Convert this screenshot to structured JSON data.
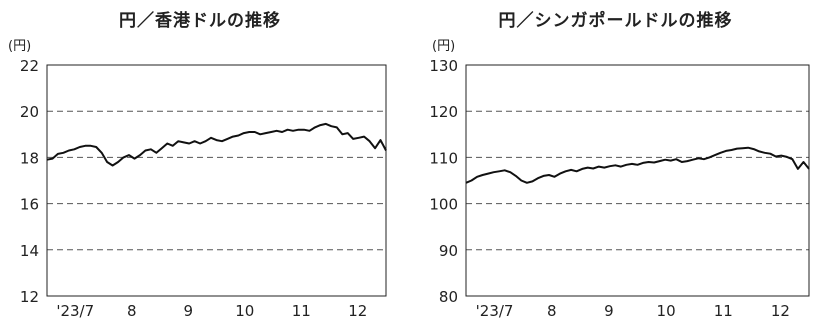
{
  "chart_data": [
    {
      "type": "line",
      "title": "円／香港ドルの推移",
      "ylabel": "(円)",
      "xlabel": "",
      "ylim": [
        12,
        22
      ],
      "yticks": [
        "22",
        "20",
        "18",
        "16",
        "14",
        "12"
      ],
      "xticks": [
        "'23/7",
        "8",
        "9",
        "10",
        "11",
        "12"
      ],
      "grid": "dashed horizontal",
      "series": [
        {
          "values": [
            17.9,
            17.95,
            18.15,
            18.2,
            18.3,
            18.35,
            18.45,
            18.5,
            18.5,
            18.45,
            18.2,
            17.8,
            17.65,
            17.8,
            18.0,
            18.1,
            17.95,
            18.1,
            18.3,
            18.35,
            18.2,
            18.4,
            18.6,
            18.5,
            18.7,
            18.65,
            18.6,
            18.7,
            18.6,
            18.7,
            18.85,
            18.75,
            18.7,
            18.8,
            18.9,
            18.95,
            19.05,
            19.1,
            19.1,
            19.0,
            19.05,
            19.1,
            19.15,
            19.1,
            19.2,
            19.15,
            19.2,
            19.2,
            19.15,
            19.3,
            19.4,
            19.45,
            19.35,
            19.3,
            19.0,
            19.05,
            18.8,
            18.85,
            18.9,
            18.7,
            18.4,
            18.75,
            18.3
          ]
        }
      ]
    },
    {
      "type": "line",
      "title": "円／シンガポールドルの推移",
      "ylabel": "(円)",
      "xlabel": "",
      "ylim": [
        80,
        130
      ],
      "yticks": [
        "130",
        "120",
        "110",
        "100",
        "90",
        "80"
      ],
      "xticks": [
        "'23/7",
        "8",
        "9",
        "10",
        "11",
        "12"
      ],
      "grid": "dashed horizontal",
      "series": [
        {
          "values": [
            104.5,
            105.0,
            105.8,
            106.2,
            106.5,
            106.8,
            107.0,
            107.2,
            106.8,
            106.0,
            105.0,
            104.5,
            104.8,
            105.5,
            106.0,
            106.2,
            105.8,
            106.5,
            107.0,
            107.3,
            107.0,
            107.5,
            107.8,
            107.6,
            108.0,
            107.8,
            108.1,
            108.3,
            108.0,
            108.4,
            108.6,
            108.4,
            108.8,
            109.0,
            108.9,
            109.2,
            109.5,
            109.3,
            109.6,
            109.0,
            109.2,
            109.5,
            109.8,
            109.6,
            110.0,
            110.5,
            111.0,
            111.4,
            111.6,
            111.9,
            112.0,
            112.1,
            111.8,
            111.3,
            111.0,
            110.8,
            110.2,
            110.4,
            110.1,
            109.6,
            107.5,
            109.0,
            107.5
          ]
        }
      ]
    }
  ]
}
